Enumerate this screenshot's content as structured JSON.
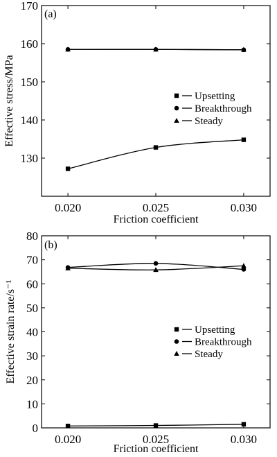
{
  "chart_data": [
    {
      "type": "line",
      "panel_label": "(a)",
      "title": "",
      "xlabel": "Friction coefficient",
      "ylabel": "Effective stress/MPa",
      "x": [
        0.02,
        0.025,
        0.03
      ],
      "x_tick_labels": [
        "0.020",
        "0.025",
        "0.030"
      ],
      "xlim": [
        0.0185,
        0.0315
      ],
      "ylim": [
        120,
        170
      ],
      "y_ticks": [
        130,
        140,
        150,
        160,
        170
      ],
      "legend_position": "right",
      "series": [
        {
          "name": "Upsetting",
          "marker": "square",
          "values": [
            127.2,
            132.8,
            134.8
          ]
        },
        {
          "name": "Breakthrough",
          "marker": "circle",
          "values": [
            158.5,
            158.5,
            158.4
          ]
        },
        {
          "name": "Steady",
          "marker": "triangle",
          "values": [
            158.5,
            158.5,
            158.4
          ]
        }
      ]
    },
    {
      "type": "line",
      "panel_label": "(b)",
      "title": "",
      "xlabel": "Friction coefficient",
      "ylabel": "Effective strain rate/s⁻¹",
      "x": [
        0.02,
        0.025,
        0.03
      ],
      "x_tick_labels": [
        "0.020",
        "0.025",
        "0.030"
      ],
      "xlim": [
        0.0185,
        0.0315
      ],
      "ylim": [
        0,
        80
      ],
      "y_ticks": [
        0,
        10,
        20,
        30,
        40,
        50,
        60,
        70,
        80
      ],
      "legend_position": "right",
      "series": [
        {
          "name": "Upsetting",
          "marker": "square",
          "values": [
            0.8,
            1.0,
            1.5
          ]
        },
        {
          "name": "Breakthrough",
          "marker": "circle",
          "values": [
            66.8,
            68.5,
            66.0
          ]
        },
        {
          "name": "Steady",
          "marker": "triangle",
          "values": [
            66.5,
            65.8,
            67.5
          ]
        }
      ]
    }
  ]
}
